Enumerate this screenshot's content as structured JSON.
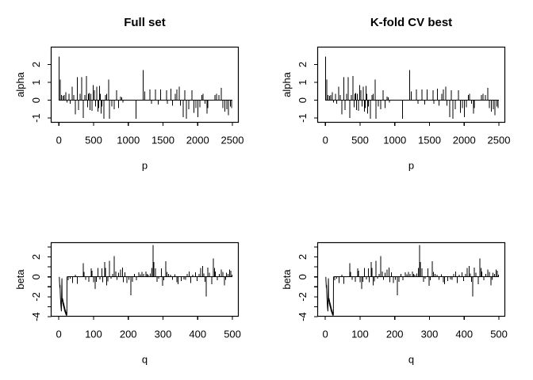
{
  "figure": {
    "background": "#ffffff",
    "ink_color": "#000000"
  },
  "chart_data": {
    "type": "bar",
    "note_type": "R base-graphics spike (type='h') plots, 2x2 layout; right column repeats left column data",
    "panels": [
      {
        "title": "Full set",
        "xlabel": "p",
        "ylabel": "alpha",
        "series": "alpha",
        "row": 0,
        "col": 0
      },
      {
        "title": "K-fold CV best",
        "xlabel": "p",
        "ylabel": "alpha",
        "series": "alpha",
        "row": 0,
        "col": 1
      },
      {
        "title": "",
        "xlabel": "q",
        "ylabel": "beta",
        "series": "beta",
        "row": 1,
        "col": 0
      },
      {
        "title": "",
        "xlabel": "q",
        "ylabel": "beta",
        "series": "beta",
        "row": 1,
        "col": 1
      }
    ],
    "series": {
      "alpha": {
        "xlim": [
          -111,
          2586
        ],
        "ylim": [
          -1.24,
          2.98
        ],
        "xticks": [
          [
            0,
            "0"
          ],
          [
            500,
            "500"
          ],
          [
            1000,
            "1000"
          ],
          [
            1500,
            "1500"
          ],
          [
            2000,
            "2000"
          ],
          [
            2500,
            "2500"
          ]
        ],
        "yticks": [
          [
            -1,
            "-1"
          ],
          [
            0,
            "0"
          ],
          [
            1,
            "1"
          ],
          [
            2,
            "2"
          ]
        ],
        "baseline": [
          0,
          2500
        ],
        "lead_line": [],
        "spikes": [
          [
            2,
            2.45
          ],
          [
            18,
            1.15
          ],
          [
            40,
            0.3
          ],
          [
            60,
            0.25
          ],
          [
            80,
            0.3
          ],
          [
            100,
            0.45
          ],
          [
            120,
            -0.12
          ],
          [
            145,
            0.35
          ],
          [
            165,
            -0.2
          ],
          [
            190,
            0.75
          ],
          [
            215,
            0.3
          ],
          [
            240,
            -0.8
          ],
          [
            268,
            1.3
          ],
          [
            285,
            -0.55
          ],
          [
            305,
            0.35
          ],
          [
            330,
            1.3
          ],
          [
            352,
            -1.0
          ],
          [
            375,
            0.3
          ],
          [
            395,
            1.35
          ],
          [
            412,
            -0.4
          ],
          [
            425,
            0.35
          ],
          [
            437,
            0.4
          ],
          [
            450,
            -0.55
          ],
          [
            462,
            0.35
          ],
          [
            478,
            -0.6
          ],
          [
            495,
            0.85
          ],
          [
            510,
            0.55
          ],
          [
            530,
            -0.35
          ],
          [
            545,
            0.75
          ],
          [
            561,
            -0.65
          ],
          [
            572,
            -0.45
          ],
          [
            585,
            0.8
          ],
          [
            597,
            0.35
          ],
          [
            608,
            -0.75
          ],
          [
            620,
            -0.35
          ],
          [
            649,
            -1.05
          ],
          [
            672,
            0.3
          ],
          [
            690,
            0.35
          ],
          [
            718,
            1.15
          ],
          [
            729,
            -1.05
          ],
          [
            762,
            -0.35
          ],
          [
            795,
            -0.5
          ],
          [
            830,
            0.55
          ],
          [
            858,
            -0.45
          ],
          [
            890,
            0.2
          ],
          [
            905,
            0.15
          ],
          [
            922,
            -0.12
          ],
          [
            1114,
            -1.05
          ],
          [
            1216,
            1.7
          ],
          [
            1240,
            0.5
          ],
          [
            1310,
            0.6
          ],
          [
            1335,
            -0.2
          ],
          [
            1390,
            0.6
          ],
          [
            1430,
            -0.25
          ],
          [
            1468,
            0.6
          ],
          [
            1550,
            0.55
          ],
          [
            1565,
            -0.2
          ],
          [
            1617,
            0.65
          ],
          [
            1640,
            -0.3
          ],
          [
            1675,
            0.35
          ],
          [
            1700,
            0.6
          ],
          [
            1732,
            0.75
          ],
          [
            1752,
            -0.3
          ],
          [
            1790,
            -0.95
          ],
          [
            1812,
            0.55
          ],
          [
            1838,
            -1.05
          ],
          [
            1870,
            -0.5
          ],
          [
            1915,
            0.55
          ],
          [
            1945,
            -0.7
          ],
          [
            1975,
            -0.45
          ],
          [
            2002,
            -0.95
          ],
          [
            2030,
            -0.4
          ],
          [
            2060,
            0.3
          ],
          [
            2078,
            0.35
          ],
          [
            2105,
            -0.2
          ],
          [
            2133,
            -0.75
          ],
          [
            2147,
            -0.45
          ],
          [
            2248,
            0.3
          ],
          [
            2270,
            0.35
          ],
          [
            2305,
            0.3
          ],
          [
            2340,
            0.7
          ],
          [
            2365,
            -0.45
          ],
          [
            2390,
            -0.65
          ],
          [
            2420,
            -0.5
          ],
          [
            2443,
            -0.85
          ],
          [
            2470,
            -0.35
          ],
          [
            2490,
            -0.45
          ]
        ]
      },
      "beta": {
        "xlim": [
          -22,
          517
        ],
        "ylim": [
          -3.95,
          3.43
        ],
        "xticks": [
          [
            0,
            "0"
          ],
          [
            100,
            "100"
          ],
          [
            200,
            "200"
          ],
          [
            300,
            "300"
          ],
          [
            400,
            "400"
          ],
          [
            500,
            "500"
          ]
        ],
        "yticks": [
          [
            -4,
            "-4"
          ],
          [
            -3,
            ""
          ],
          [
            -2,
            "-2"
          ],
          [
            -1,
            ""
          ],
          [
            0,
            "0"
          ],
          [
            1,
            ""
          ],
          [
            2,
            "2"
          ],
          [
            3,
            ""
          ]
        ],
        "baseline": [
          23.6,
          500
        ],
        "lead_line": [
          [
            1.5,
            0
          ],
          [
            2,
            -0.45
          ],
          [
            3,
            -1.1
          ],
          [
            3.5,
            -0.8
          ],
          [
            4.5,
            -1.9
          ],
          [
            5.5,
            -2.6
          ],
          [
            6.5,
            -3.1
          ],
          [
            7.5,
            -3.45
          ],
          [
            8.5,
            -1.2
          ],
          [
            9,
            -0.15
          ],
          [
            9.5,
            -2.15
          ],
          [
            10.5,
            -2.5
          ],
          [
            11,
            -2.15
          ],
          [
            11.5,
            -2.7
          ],
          [
            12,
            -2.3
          ],
          [
            12.5,
            -2.85
          ],
          [
            13,
            -2.5
          ],
          [
            13.5,
            -3.0
          ],
          [
            14,
            -2.6
          ],
          [
            14.5,
            -3.1
          ],
          [
            15,
            -2.75
          ],
          [
            15.5,
            -3.25
          ],
          [
            16,
            -2.9
          ],
          [
            16.5,
            -3.4
          ],
          [
            17,
            -3.05
          ],
          [
            17.5,
            -3.5
          ],
          [
            18,
            -3.2
          ],
          [
            18.5,
            -3.6
          ],
          [
            19,
            -3.35
          ],
          [
            19.5,
            -3.7
          ],
          [
            20,
            -3.5
          ],
          [
            20.5,
            -3.8
          ],
          [
            21,
            -3.6
          ],
          [
            21.5,
            -3.86
          ],
          [
            22,
            -3.5
          ],
          [
            22.5,
            -3.9
          ],
          [
            23,
            -3.3
          ],
          [
            23.3,
            -3.8
          ],
          [
            23.6,
            0
          ]
        ],
        "spikes": [
          [
            27,
            -0.35
          ],
          [
            33,
            -0.2
          ],
          [
            40,
            -0.6
          ],
          [
            48,
            0.2
          ],
          [
            53,
            -0.7
          ],
          [
            70,
            1.35
          ],
          [
            73,
            0.5
          ],
          [
            77,
            -0.3
          ],
          [
            86,
            -0.5
          ],
          [
            93,
            0.85
          ],
          [
            96,
            0.6
          ],
          [
            100,
            -0.55
          ],
          [
            105,
            -1.2
          ],
          [
            108,
            -0.5
          ],
          [
            113,
            0.9
          ],
          [
            118,
            -0.25
          ],
          [
            124,
            0.85
          ],
          [
            127,
            -0.55
          ],
          [
            132,
            1.5
          ],
          [
            135,
            0.9
          ],
          [
            138,
            -0.85
          ],
          [
            141,
            -0.45
          ],
          [
            146,
            1.6
          ],
          [
            150,
            -0.2
          ],
          [
            155,
            0.3
          ],
          [
            160,
            2.1
          ],
          [
            164,
            0.55
          ],
          [
            168,
            -0.3
          ],
          [
            172,
            0.4
          ],
          [
            178,
            0.75
          ],
          [
            183,
            0.95
          ],
          [
            186,
            -0.55
          ],
          [
            190,
            0.45
          ],
          [
            196,
            -0.6
          ],
          [
            202,
            -0.3
          ],
          [
            207,
            -1.85
          ],
          [
            212,
            -0.5
          ],
          [
            218,
            0.3
          ],
          [
            224,
            -0.35
          ],
          [
            230,
            0.45
          ],
          [
            235,
            0.25
          ],
          [
            240,
            0.5
          ],
          [
            244,
            0.3
          ],
          [
            251,
            0.55
          ],
          [
            254,
            0.3
          ],
          [
            258,
            0.2
          ],
          [
            264,
            0.35
          ],
          [
            268,
            0.9
          ],
          [
            271,
            3.2
          ],
          [
            274,
            1.5
          ],
          [
            278,
            0.85
          ],
          [
            283,
            -0.5
          ],
          [
            288,
            -0.2
          ],
          [
            295,
            0.85
          ],
          [
            299,
            -0.9
          ],
          [
            302,
            -0.35
          ],
          [
            308,
            1.55
          ],
          [
            311,
            0.5
          ],
          [
            316,
            0.3
          ],
          [
            322,
            0.2
          ],
          [
            328,
            -0.3
          ],
          [
            334,
            0.25
          ],
          [
            340,
            -0.55
          ],
          [
            343,
            -0.75
          ],
          [
            352,
            -0.4
          ],
          [
            360,
            -0.25
          ],
          [
            365,
            -0.3
          ],
          [
            370,
            0.3
          ],
          [
            375,
            0.55
          ],
          [
            380,
            -0.6
          ],
          [
            386,
            0.2
          ],
          [
            394,
            0.45
          ],
          [
            398,
            -0.4
          ],
          [
            404,
            0.3
          ],
          [
            409,
            0.9
          ],
          [
            414,
            1.1
          ],
          [
            418,
            0.35
          ],
          [
            421,
            -0.5
          ],
          [
            424,
            -1.95
          ],
          [
            429,
            0.95
          ],
          [
            434,
            0.4
          ],
          [
            440,
            -0.75
          ],
          [
            445,
            1.85
          ],
          [
            448,
            0.9
          ],
          [
            451,
            0.55
          ],
          [
            456,
            -0.35
          ],
          [
            462,
            0.3
          ],
          [
            468,
            0.75
          ],
          [
            472,
            0.5
          ],
          [
            477,
            -0.85
          ],
          [
            480,
            -0.3
          ],
          [
            483,
            0.4
          ],
          [
            487,
            0.3
          ],
          [
            492,
            0.75
          ],
          [
            495,
            0.6
          ],
          [
            499,
            0.2
          ]
        ]
      }
    }
  }
}
